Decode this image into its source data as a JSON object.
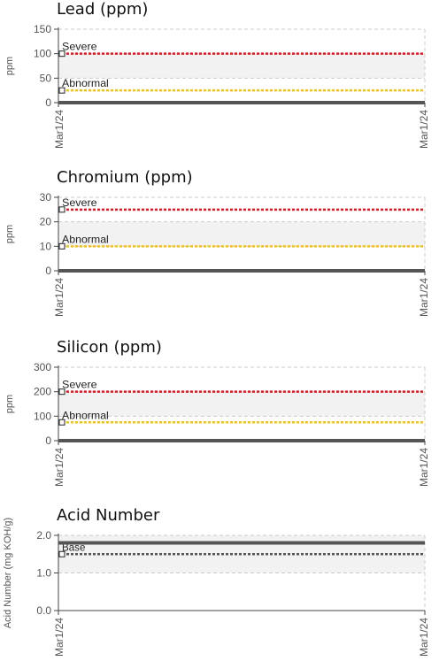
{
  "colors": {
    "severe": "#e8141e",
    "abnormal": "#f2c40f",
    "base": "#555555",
    "data": "#555555",
    "band": "#f2f2f2",
    "grid": "#cccccc",
    "axis": "#444444"
  },
  "chart_data": [
    {
      "type": "line",
      "title": "Lead (ppm)",
      "ylabel": "ppm",
      "xlabel": "",
      "ylim": [
        0,
        150
      ],
      "yticks": [
        "0",
        "50",
        "100",
        "150"
      ],
      "x_tick_labels": [
        "Mar1/24",
        "Mar1/24"
      ],
      "grid": true,
      "band": [
        50,
        100
      ],
      "series": [
        {
          "name": "",
          "kind": "data",
          "x": [
            "Mar1/24",
            "Mar1/24"
          ],
          "values": [
            0,
            0
          ]
        }
      ],
      "thresholds": [
        {
          "label": "Severe",
          "value": 100,
          "style": "severe"
        },
        {
          "label": "Abnormal",
          "value": 25,
          "style": "abnormal"
        }
      ]
    },
    {
      "type": "line",
      "title": "Chromium (ppm)",
      "ylabel": "ppm",
      "xlabel": "",
      "ylim": [
        0,
        30
      ],
      "yticks": [
        "0",
        "10",
        "20",
        "30"
      ],
      "x_tick_labels": [
        "Mar1/24",
        "Mar1/24"
      ],
      "grid": true,
      "band": [
        10,
        20
      ],
      "series": [
        {
          "name": "",
          "kind": "data",
          "x": [
            "Mar1/24",
            "Mar1/24"
          ],
          "values": [
            0,
            0
          ]
        }
      ],
      "thresholds": [
        {
          "label": "Severe",
          "value": 25,
          "style": "severe"
        },
        {
          "label": "Abnormal",
          "value": 10,
          "style": "abnormal"
        }
      ]
    },
    {
      "type": "line",
      "title": "Silicon (ppm)",
      "ylabel": "ppm",
      "xlabel": "",
      "ylim": [
        0,
        300
      ],
      "yticks": [
        "0",
        "100",
        "200",
        "300"
      ],
      "x_tick_labels": [
        "Mar1/24",
        "Mar1/24"
      ],
      "grid": true,
      "band": [
        100,
        200
      ],
      "series": [
        {
          "name": "",
          "kind": "data",
          "x": [
            "Mar1/24",
            "Mar1/24"
          ],
          "values": [
            0,
            0
          ]
        }
      ],
      "thresholds": [
        {
          "label": "Severe",
          "value": 200,
          "style": "severe"
        },
        {
          "label": "Abnormal",
          "value": 75,
          "style": "abnormal"
        }
      ]
    },
    {
      "type": "line",
      "title": "Acid Number",
      "ylabel": "Acid Number (mg KOH/g)",
      "xlabel": "",
      "ylim": [
        0,
        2
      ],
      "yticks": [
        "0.0",
        "1.0",
        "2.0"
      ],
      "x_tick_labels": [
        "Mar1/24",
        "Mar1/24"
      ],
      "grid": true,
      "band": [
        1,
        2
      ],
      "series": [
        {
          "name": "",
          "kind": "data",
          "x": [
            "Mar1/24",
            "Mar1/24"
          ],
          "values": [
            1.8,
            1.8
          ]
        }
      ],
      "thresholds": [
        {
          "label": "Base",
          "value": 1.5,
          "style": "base"
        }
      ]
    }
  ]
}
